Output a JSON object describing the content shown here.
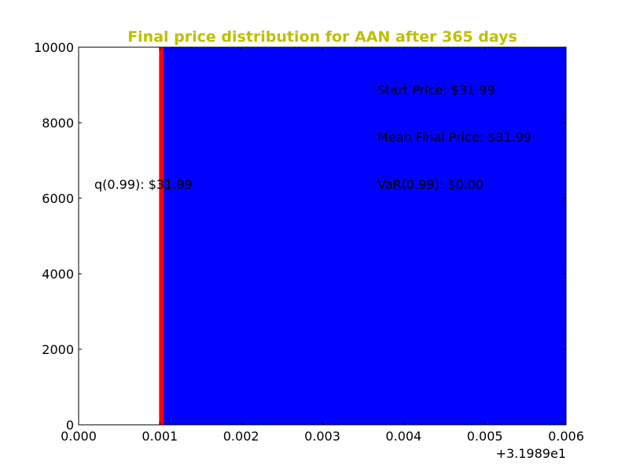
{
  "chart_data": {
    "type": "bar",
    "title": "Final price distribution for AAN after 365 days",
    "xlabel": "",
    "ylabel": "",
    "x_offset_label": "+3.1989e1",
    "xlim": [
      0.0,
      0.006
    ],
    "ylim": [
      0,
      10000
    ],
    "x_ticks": [
      "0.000",
      "0.001",
      "0.002",
      "0.003",
      "0.004",
      "0.005",
      "0.006"
    ],
    "x_tick_values": [
      0.0,
      0.001,
      0.002,
      0.003,
      0.004,
      0.005,
      0.006
    ],
    "y_ticks": [
      "0",
      "2000",
      "4000",
      "6000",
      "8000",
      "10000"
    ],
    "y_tick_values": [
      0,
      2000,
      4000,
      6000,
      8000,
      10000
    ],
    "bars": [
      {
        "x_start": 0.001,
        "x_end": 0.006,
        "value": 10000,
        "color": "#0000ff"
      }
    ],
    "vline": {
      "x": 0.001,
      "color": "#ff0000"
    },
    "annotations": {
      "start_price": "Start Price: $31.99",
      "mean_final_price": "Mean Final Price: $31.99",
      "var": "VaR(0.99): $0.00",
      "quantile": "q(0.99): $31.99"
    },
    "grid": false,
    "title_color": "#bfbf00"
  }
}
